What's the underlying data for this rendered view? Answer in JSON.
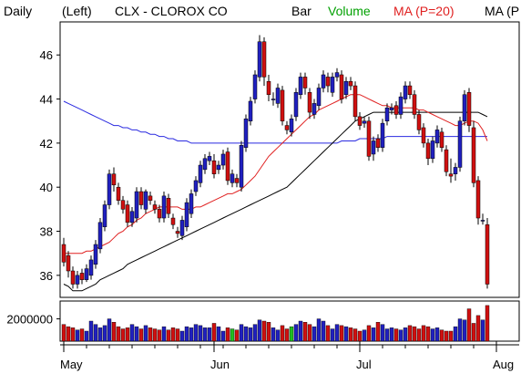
{
  "header": {
    "period": "Daily",
    "axis_side": "(Left)",
    "symbol_title": "CLX - CLOROX CO",
    "legend_bar": "Bar",
    "legend_volume": "Volume",
    "legend_ma20": "MA (P=20)",
    "legend_ma_long": "MA (P"
  },
  "colors": {
    "up": "#2020c0",
    "down": "#d01010",
    "ma20": "#e02020",
    "ma_long": "#2a2ae0",
    "ma_black": "#000000",
    "volume_label": "#00a000",
    "volume_green": "#20c020"
  },
  "chart_data": [
    {
      "type": "candlestick",
      "title": "CLX - CLOROX CO",
      "ylim": [
        35,
        47.5
      ],
      "y_ticks": [
        "46",
        "44",
        "42",
        "40",
        "38",
        "36"
      ],
      "y_tick_values": [
        46,
        44,
        42,
        40,
        38,
        36
      ],
      "x_ticks": [
        "May",
        "Jun",
        "Jul",
        "Aug"
      ],
      "x_tick_index": [
        0,
        33,
        65,
        95
      ],
      "open": [
        37.4,
        36.9,
        36.2,
        35.6,
        36.1,
        35.8,
        36.0,
        36.5,
        37.2,
        38.2,
        39.2,
        40.6,
        40.0,
        39.4,
        39.2,
        38.4,
        38.6,
        39.8,
        39.0,
        39.6,
        39.2,
        39.0,
        38.6,
        39.5,
        38.6,
        38.0,
        37.8,
        38.2,
        38.8,
        39.8,
        40.2,
        40.8,
        41.2,
        41.2,
        40.8,
        41.0,
        41.6,
        40.2,
        40.4,
        40.0,
        41.8,
        43.0,
        44.0,
        45.0,
        46.6,
        44.8,
        44.0,
        43.8,
        44.4,
        42.8,
        42.5,
        43.2,
        44.2,
        45.0,
        44.3,
        43.3,
        43.7,
        44.5,
        45.0,
        44.3,
        45.0,
        45.1,
        44.2,
        44.8,
        44.6,
        43.2,
        42.9,
        43.0,
        41.5,
        42.2,
        41.8,
        43.0,
        43.5,
        43.7,
        43.3,
        44.0,
        44.6,
        44.2,
        43.3,
        42.7,
        42.0,
        41.3,
        42.0,
        42.5,
        41.7,
        40.6,
        40.6,
        40.9,
        43.0,
        44.3,
        42.7,
        40.3,
        38.5,
        38.3
      ],
      "close": [
        36.6,
        36.2,
        35.6,
        36.0,
        35.8,
        36.3,
        36.7,
        37.4,
        38.4,
        39.2,
        40.6,
        40.1,
        39.4,
        39.0,
        38.4,
        38.9,
        39.8,
        39.2,
        39.8,
        39.4,
        39.0,
        38.6,
        39.6,
        38.8,
        38.3,
        37.9,
        38.5,
        39.3,
        39.7,
        40.3,
        41.0,
        41.3,
        41.4,
        40.6,
        41.0,
        41.5,
        40.3,
        40.6,
        40.2,
        41.9,
        43.1,
        43.9,
        45.1,
        46.6,
        45.0,
        44.2,
        44.0,
        44.5,
        43.0,
        42.6,
        43.1,
        44.3,
        45.0,
        44.5,
        43.4,
        43.8,
        44.5,
        45.1,
        44.6,
        45.0,
        45.2,
        44.0,
        44.8,
        44.6,
        43.2,
        42.8,
        43.0,
        41.4,
        42.1,
        41.8,
        42.9,
        43.6,
        43.6,
        43.3,
        44.1,
        44.6,
        44.2,
        43.3,
        42.6,
        42.0,
        41.3,
        42.1,
        42.6,
        41.8,
        40.7,
        40.5,
        40.9,
        43.0,
        44.2,
        42.8,
        40.2,
        38.6,
        38.5,
        35.6
      ],
      "high": [
        37.7,
        37.1,
        36.4,
        36.2,
        36.3,
        36.5,
        36.9,
        37.6,
        38.6,
        39.4,
        40.8,
        40.9,
        40.2,
        39.6,
        39.4,
        39.1,
        40.0,
        40.0,
        39.9,
        39.8,
        39.4,
        39.2,
        39.8,
        39.7,
        38.8,
        38.2,
        38.7,
        39.5,
        39.9,
        40.5,
        41.2,
        41.5,
        41.6,
        41.5,
        41.2,
        41.7,
        41.8,
        40.8,
        40.6,
        42.1,
        43.3,
        44.1,
        45.3,
        46.9,
        46.8,
        45.1,
        44.3,
        44.7,
        44.6,
        43.0,
        43.3,
        44.5,
        45.2,
        45.2,
        44.5,
        44.0,
        44.7,
        45.3,
        45.2,
        45.2,
        45.4,
        45.3,
        45.0,
        45.0,
        44.8,
        43.4,
        43.2,
        43.2,
        42.3,
        42.4,
        43.1,
        43.8,
        43.8,
        43.9,
        44.3,
        44.8,
        44.8,
        44.4,
        43.5,
        42.9,
        42.2,
        42.3,
        42.8,
        42.7,
        41.9,
        41.3,
        41.1,
        43.2,
        44.4,
        44.5,
        43.0,
        40.5,
        38.8,
        38.6
      ],
      "low": [
        36.4,
        35.9,
        35.4,
        35.4,
        35.6,
        35.7,
        35.8,
        36.3,
        37.0,
        38.0,
        39.0,
        39.8,
        39.2,
        38.8,
        38.2,
        38.2,
        38.4,
        39.0,
        38.8,
        39.2,
        38.8,
        38.4,
        38.4,
        38.6,
        38.1,
        37.7,
        37.6,
        38.0,
        38.6,
        39.6,
        40.0,
        40.6,
        41.0,
        40.4,
        40.6,
        40.8,
        40.1,
        40.0,
        40.0,
        39.8,
        41.6,
        42.8,
        43.8,
        44.8,
        44.6,
        43.9,
        43.7,
        43.6,
        42.8,
        42.4,
        42.3,
        43.0,
        44.0,
        44.2,
        43.1,
        43.1,
        43.5,
        44.3,
        44.3,
        44.1,
        44.8,
        43.8,
        44.0,
        44.4,
        43.0,
        42.6,
        42.7,
        41.2,
        41.2,
        41.6,
        41.6,
        42.8,
        43.3,
        43.1,
        43.1,
        43.8,
        44.0,
        43.1,
        42.4,
        41.8,
        41.0,
        41.1,
        41.8,
        41.6,
        40.5,
        40.2,
        40.3,
        40.7,
        42.8,
        42.5,
        40.0,
        38.3,
        38.3,
        35.4
      ],
      "ma20": [
        37.0,
        37.0,
        37.0,
        37.0,
        37.0,
        37.1,
        37.1,
        37.2,
        37.3,
        37.4,
        37.5,
        37.7,
        37.9,
        38.0,
        38.2,
        38.3,
        38.5,
        38.6,
        38.8,
        38.9,
        39.0,
        39.1,
        39.1,
        39.1,
        39.1,
        39.1,
        39.0,
        39.0,
        39.0,
        39.1,
        39.1,
        39.2,
        39.3,
        39.4,
        39.5,
        39.6,
        39.7,
        39.7,
        39.8,
        39.9,
        40.1,
        40.3,
        40.5,
        40.8,
        41.1,
        41.4,
        41.6,
        41.8,
        42.0,
        42.2,
        42.4,
        42.6,
        42.8,
        43.0,
        43.2,
        43.3,
        43.5,
        43.6,
        43.7,
        43.8,
        43.9,
        44.0,
        44.1,
        44.2,
        44.2,
        44.2,
        44.1,
        44.0,
        43.9,
        43.8,
        43.7,
        43.7,
        43.6,
        43.6,
        43.6,
        43.6,
        43.6,
        43.6,
        43.5,
        43.5,
        43.4,
        43.3,
        43.2,
        43.1,
        43.0,
        42.9,
        42.8,
        42.8,
        42.9,
        43.0,
        43.0,
        42.9,
        42.6,
        42.1
      ],
      "ma_black": [
        35.6,
        35.5,
        35.3,
        35.3,
        35.3,
        35.4,
        35.5,
        35.6,
        35.8,
        35.9,
        36.0,
        36.1,
        36.2,
        36.3,
        36.5,
        36.6,
        36.7,
        36.8,
        36.9,
        37.0,
        37.1,
        37.2,
        37.3,
        37.4,
        37.5,
        37.6,
        37.7,
        37.8,
        37.9,
        38.0,
        38.1,
        38.2,
        38.3,
        38.4,
        38.5,
        38.6,
        38.7,
        38.8,
        38.9,
        39.0,
        39.1,
        39.2,
        39.3,
        39.4,
        39.5,
        39.6,
        39.7,
        39.8,
        39.9,
        40.0,
        40.2,
        40.4,
        40.6,
        40.8,
        41.0,
        41.2,
        41.4,
        41.6,
        41.8,
        42.0,
        42.2,
        42.4,
        42.6,
        42.8,
        43.0,
        43.1,
        43.2,
        43.3,
        43.4,
        43.4,
        43.4,
        43.4,
        43.4,
        43.4,
        43.4,
        43.4,
        43.4,
        43.4,
        43.4,
        43.4,
        43.4,
        43.4,
        43.4,
        43.4,
        43.4,
        43.4,
        43.4,
        43.4,
        43.4,
        43.4,
        43.4,
        43.4,
        43.3,
        43.2
      ],
      "ma_long": [
        43.9,
        43.8,
        43.7,
        43.6,
        43.5,
        43.4,
        43.3,
        43.2,
        43.1,
        43.0,
        42.9,
        42.8,
        42.8,
        42.7,
        42.7,
        42.6,
        42.6,
        42.5,
        42.5,
        42.4,
        42.4,
        42.3,
        42.3,
        42.2,
        42.2,
        42.1,
        42.1,
        42.1,
        42.0,
        42.0,
        42.0,
        42.0,
        42.0,
        42.0,
        42.0,
        42.0,
        42.0,
        42.0,
        42.0,
        42.0,
        42.0,
        42.0,
        42.0,
        42.0,
        42.0,
        42.0,
        42.0,
        42.0,
        42.0,
        42.0,
        42.0,
        42.0,
        42.0,
        42.0,
        42.0,
        42.0,
        42.0,
        42.0,
        42.0,
        42.0,
        42.0,
        42.1,
        42.1,
        42.1,
        42.1,
        42.2,
        42.2,
        42.2,
        42.2,
        42.2,
        42.2,
        42.3,
        42.3,
        42.3,
        42.3,
        42.3,
        42.3,
        42.3,
        42.3,
        42.3,
        42.3,
        42.3,
        42.3,
        42.3,
        42.3,
        42.3,
        42.3,
        42.3,
        42.3,
        42.3,
        42.3,
        42.3,
        42.3,
        42.3
      ]
    },
    {
      "type": "bar",
      "title": "Volume",
      "y_ticks": [
        "2000000"
      ],
      "y_tick_values": [
        2000000
      ],
      "ylim": [
        0,
        3600000
      ],
      "volume": [
        1500000,
        1300000,
        1200000,
        1000000,
        1100000,
        900000,
        1800000,
        1500000,
        1200000,
        1400000,
        2000000,
        1700000,
        1300000,
        1100000,
        1200000,
        1500000,
        1300000,
        1100000,
        1400000,
        1200000,
        1100000,
        1000000,
        1300000,
        1000000,
        1200000,
        1100000,
        900000,
        1300000,
        1200000,
        1500000,
        1400000,
        1200000,
        1200000,
        1600000,
        1300000,
        900000,
        1200000,
        1100000,
        1000000,
        1500000,
        1300000,
        1200000,
        1500000,
        1900000,
        1800000,
        1700000,
        1200000,
        1000000,
        1400000,
        1100000,
        1300000,
        1500000,
        1800000,
        1700000,
        1500000,
        1300000,
        2000000,
        1800000,
        1400000,
        1100000,
        1500000,
        1400000,
        1300000,
        1200000,
        1100000,
        900000,
        1000000,
        1400000,
        1200000,
        1700000,
        1500000,
        1100000,
        1200000,
        1100000,
        1000000,
        1200000,
        1400000,
        1300000,
        1100000,
        1400000,
        1300000,
        1100000,
        1200000,
        1000000,
        900000,
        900000,
        1300000,
        2000000,
        1900000,
        2900000,
        1600000,
        2300000,
        1900000,
        3200000
      ],
      "volume_green_index": [
        37,
        50
      ]
    }
  ]
}
